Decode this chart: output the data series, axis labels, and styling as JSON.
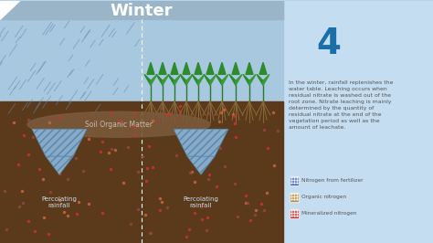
{
  "title": "Winter",
  "number": "4",
  "description": "In the winter, rainfall replenishes the\nwater table. Leaching occurs when\nresidual nitrate is washed out of the\nroot zone. Nitrate leaching is mainly\ndetermined by the quantity of\nresidual nitrate at the end of the\nvegetation period as well as the\namount of leachate.",
  "legend_items": [
    "Nitrogen from fertilizer",
    "Organic nitrogen",
    "Mineralized nitrogen"
  ],
  "bg_color": "#b8d4e8",
  "right_panel_color": "#c5ddf0",
  "soil_color": "#5a3a1a",
  "sky_color": "#a8c8e0",
  "header_color": "#9ab5c8",
  "title_color": "#ffffff",
  "number_color": "#1a6fa8",
  "text_color": "#555555",
  "organic_matter_color": "#7a5a3a",
  "rain_color": "#6699bb",
  "leachate_color": "#88aac8",
  "label_color": "#ccddee",
  "percolating_label": "Percolating\nrainfall"
}
